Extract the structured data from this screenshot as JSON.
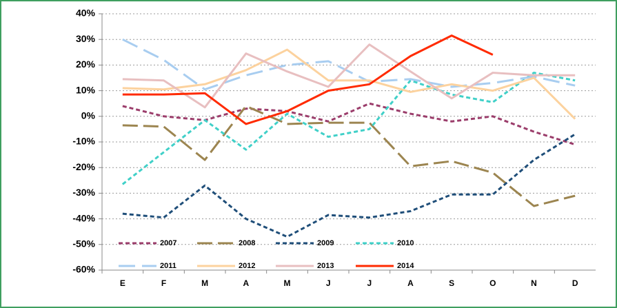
{
  "chart_data": {
    "type": "line",
    "categories": [
      "E",
      "F",
      "M",
      "A",
      "M",
      "J",
      "J",
      "A",
      "S",
      "O",
      "N",
      "D"
    ],
    "ylim": [
      -60,
      40
    ],
    "yticks": [
      {
        "value": -60,
        "label": "-60%"
      },
      {
        "value": -50,
        "label": "-50%"
      },
      {
        "value": -40,
        "label": "-40%"
      },
      {
        "value": -30,
        "label": "-30%"
      },
      {
        "value": -20,
        "label": "-20%"
      },
      {
        "value": -10,
        "label": "-10%"
      },
      {
        "value": 0,
        "label": "0%"
      },
      {
        "value": 10,
        "label": "10%"
      },
      {
        "value": 20,
        "label": "20%"
      },
      {
        "value": 30,
        "label": "30%"
      },
      {
        "value": 40,
        "label": "40%"
      }
    ],
    "grid": true,
    "legend": "lower-left",
    "series": [
      {
        "name": "2007",
        "color": "#9b3d6b",
        "dash": "6,4",
        "values": [
          4,
          0,
          -1.5,
          3,
          2,
          -2,
          5,
          1,
          -2,
          0,
          -6,
          -11
        ]
      },
      {
        "name": "2008",
        "color": "#9c8550",
        "dash": "22,8",
        "values": [
          -3.5,
          -4,
          -17,
          4,
          -3,
          -2.5,
          -2.5,
          -19.5,
          -17.5,
          -22,
          -35,
          -31
        ]
      },
      {
        "name": "2009",
        "color": "#1f4e79",
        "dash": "6,4",
        "values": [
          -38,
          -39.5,
          -27,
          -40,
          -47,
          -38.5,
          -39.5,
          -37,
          -30.5,
          -30.5,
          -17,
          -7
        ]
      },
      {
        "name": "2010",
        "color": "#40d0c8",
        "dash": "6,4",
        "values": [
          -26.5,
          -14,
          -1.5,
          -13,
          1,
          -8,
          -5,
          14,
          8.5,
          5.5,
          17,
          14
        ]
      },
      {
        "name": "2011",
        "color": "#a8cdf0",
        "dash": "24,10",
        "values": [
          30,
          22,
          10.5,
          16,
          20,
          21.5,
          13.5,
          14.5,
          11.5,
          13,
          15.5,
          12
        ]
      },
      {
        "name": "2012",
        "color": "#fcd29e",
        "dash": "none",
        "values": [
          11,
          10.5,
          12.5,
          18,
          26,
          14,
          14,
          9.5,
          12.5,
          10,
          15,
          -1
        ]
      },
      {
        "name": "2013",
        "color": "#e8bfc0",
        "dash": "none",
        "values": [
          14.5,
          14,
          3.5,
          24.5,
          17.5,
          11.5,
          28,
          17.5,
          7,
          17,
          16,
          16
        ]
      },
      {
        "name": "2014",
        "color": "#ff2a00",
        "dash": "none",
        "values": [
          8.5,
          8.5,
          9,
          -3,
          2,
          10,
          12.5,
          23.5,
          31.5,
          24,
          null,
          null
        ]
      }
    ]
  }
}
